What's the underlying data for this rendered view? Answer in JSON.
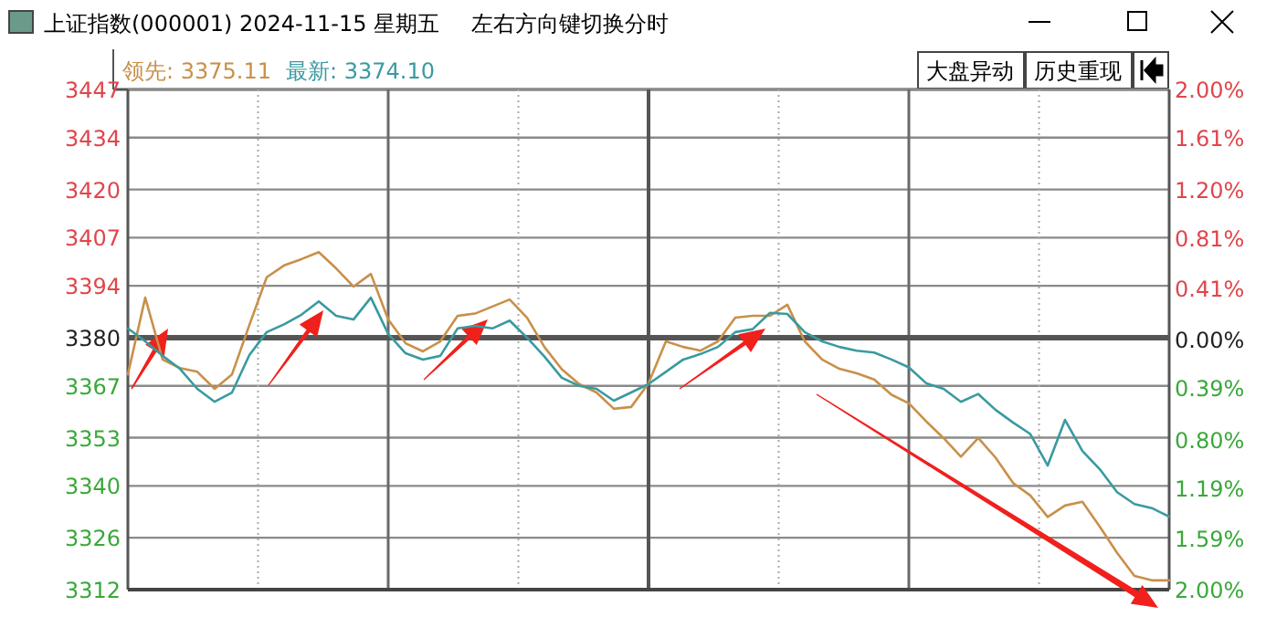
{
  "chart_data": {
    "type": "line",
    "title": "上证指数(000001) 2024-11-15 星期五",
    "subtitle": "左右方向键切换分时",
    "annotations": [
      "大盘异动",
      "历史重现"
    ],
    "categories": [
      null,
      null,
      null,
      null,
      null,
      null,
      null,
      null,
      null,
      null,
      null,
      null,
      null,
      null,
      null,
      null,
      null,
      null,
      null,
      null,
      null,
      null,
      null,
      null,
      null,
      null,
      null,
      null,
      null,
      null,
      null,
      null,
      null,
      null,
      null,
      null,
      null,
      null,
      null,
      null,
      null,
      null,
      null,
      null,
      null,
      null,
      null,
      null,
      null,
      null,
      null,
      null,
      null,
      null,
      null,
      null,
      null,
      null,
      null,
      null,
      null
    ],
    "ylim": [
      3312,
      3447
    ],
    "yticks": [
      3312,
      3326,
      3340,
      3353,
      3367,
      3380,
      3394,
      3407,
      3420,
      3434,
      3447
    ],
    "y2lim": [
      -2.0,
      2.0
    ],
    "y2ticks": [
      {
        "value": -2.0,
        "label": "2.00%"
      },
      {
        "value": -1.59,
        "label": "1.59%"
      },
      {
        "value": -1.19,
        "label": "1.19%"
      },
      {
        "value": -0.8,
        "label": "0.80%"
      },
      {
        "value": -0.39,
        "label": "0.39%"
      },
      {
        "value": 0,
        "label": "0.00%"
      },
      {
        "value": 0.41,
        "label": "0.41%"
      },
      {
        "value": 0.81,
        "label": "0.81%"
      },
      {
        "value": 1.2,
        "label": "1.20%"
      },
      {
        "value": 1.61,
        "label": "1.61%"
      },
      {
        "value": 2.0,
        "label": "2.00%"
      }
    ],
    "grid": true,
    "legend": "top left",
    "marker": "none",
    "line_style": "solid",
    "ref_lines": [
      {
        "axis": "y",
        "value": 3380,
        "color": "#555555"
      }
    ],
    "series": [
      {
        "name": "领先: 3375.11",
        "color": "#c8904a",
        "values": [
          3370.1,
          3390.8,
          3374.1,
          3371.8,
          3370.8,
          3366.2,
          3370.1,
          3383.4,
          3396.3,
          3399.5,
          3401.2,
          3403.1,
          3398.7,
          3393.8,
          3397.2,
          3384.9,
          3378.5,
          3376.3,
          3379.0,
          3385.9,
          3386.5,
          3388.4,
          3390.3,
          3385.4,
          3377.5,
          3371.5,
          3367.5,
          3365.2,
          3360.8,
          3361.3,
          3367.7,
          3379.0,
          3377.5,
          3376.5,
          3379.0,
          3385.4,
          3385.9,
          3385.9,
          3388.9,
          3379.0,
          3374.1,
          3371.6,
          3370.4,
          3368.7,
          3364.6,
          3362.3,
          3357.4,
          3352.9,
          3347.9,
          3352.9,
          3347.6,
          3340.8,
          3337.4,
          3331.6,
          3334.7,
          3335.7,
          3329.0,
          3321.9,
          3315.7,
          3314.5,
          3314.5
        ]
      },
      {
        "name": "最新: 3374.10",
        "color": "#3a9aa0",
        "values": [
          3382.5,
          3379.0,
          3375.1,
          3371.6,
          3366.2,
          3362.7,
          3365.2,
          3375.3,
          3381.5,
          3383.6,
          3386.2,
          3389.8,
          3385.9,
          3384.9,
          3390.8,
          3381.0,
          3375.8,
          3374.1,
          3375.1,
          3382.5,
          3383.2,
          3382.5,
          3384.6,
          3380.0,
          3374.9,
          3369.2,
          3367.0,
          3366.2,
          3363.0,
          3365.2,
          3367.5,
          3370.8,
          3374.1,
          3375.6,
          3377.5,
          3381.5,
          3382.3,
          3386.7,
          3386.4,
          3381.5,
          3379.0,
          3377.5,
          3376.5,
          3376.0,
          3374.1,
          3372.0,
          3367.7,
          3366.2,
          3362.7,
          3364.8,
          3360.5,
          3357.1,
          3354.0,
          3345.5,
          3357.8,
          3349.4,
          3344.5,
          3338.3,
          3335.1,
          3334.0,
          3331.7
        ]
      }
    ]
  }
}
